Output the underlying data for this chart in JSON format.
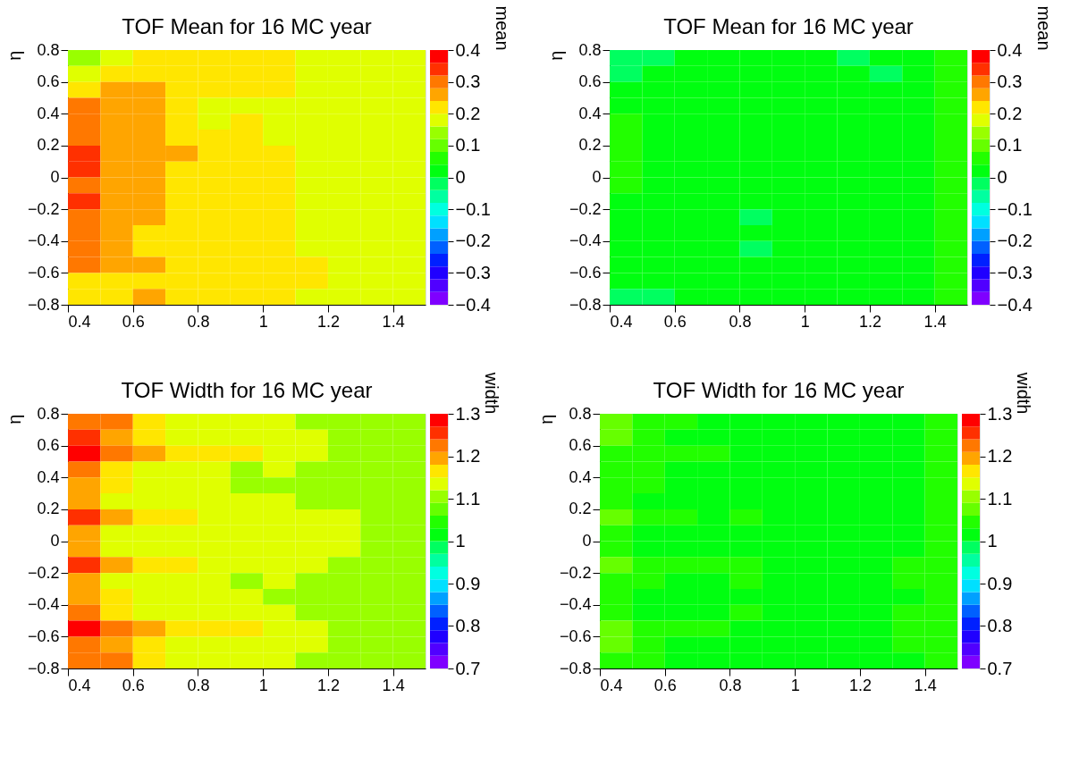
{
  "chart_data": [
    {
      "type": "heatmap",
      "title": "TOF Mean for 16 MC year",
      "ylabel": "η",
      "clabel": "mean",
      "x": [
        0.45,
        0.55,
        0.65,
        0.75,
        0.85,
        0.95,
        1.05,
        1.15,
        1.25,
        1.35,
        1.45
      ],
      "y": [
        0.75,
        0.65,
        0.55,
        0.45,
        0.35,
        0.25,
        0.15,
        0.05,
        -0.05,
        -0.15,
        -0.25,
        -0.35,
        -0.45,
        -0.55,
        -0.65,
        -0.75
      ],
      "xlim": [
        0.4,
        1.5
      ],
      "xticks": [
        0.4,
        0.6,
        0.8,
        1,
        1.2,
        1.4
      ],
      "ylim": [
        -0.8,
        0.8
      ],
      "yticks": [
        -0.8,
        -0.6,
        -0.4,
        -0.2,
        0,
        0.2,
        0.4,
        0.6,
        0.8
      ],
      "clim": [
        -0.4,
        0.4
      ],
      "cticks": [
        -0.4,
        -0.3,
        -0.2,
        -0.1,
        0,
        0.1,
        0.2,
        0.3,
        0.4
      ],
      "cells": [
        [
          0.14,
          0.18,
          0.22,
          0.22,
          0.22,
          0.22,
          0.22,
          0.18,
          0.18,
          0.18,
          0.18
        ],
        [
          0.18,
          0.22,
          0.22,
          0.22,
          0.22,
          0.22,
          0.22,
          0.18,
          0.18,
          0.18,
          0.18
        ],
        [
          0.22,
          0.26,
          0.26,
          0.22,
          0.22,
          0.22,
          0.22,
          0.18,
          0.18,
          0.18,
          0.18
        ],
        [
          0.3,
          0.26,
          0.26,
          0.22,
          0.18,
          0.18,
          0.18,
          0.18,
          0.18,
          0.18,
          0.18
        ],
        [
          0.3,
          0.26,
          0.26,
          0.22,
          0.18,
          0.22,
          0.18,
          0.18,
          0.18,
          0.18,
          0.18
        ],
        [
          0.3,
          0.26,
          0.26,
          0.22,
          0.22,
          0.22,
          0.18,
          0.18,
          0.18,
          0.18,
          0.18
        ],
        [
          0.34,
          0.26,
          0.26,
          0.26,
          0.22,
          0.22,
          0.22,
          0.18,
          0.18,
          0.18,
          0.18
        ],
        [
          0.34,
          0.26,
          0.26,
          0.22,
          0.22,
          0.22,
          0.22,
          0.18,
          0.18,
          0.18,
          0.18
        ],
        [
          0.3,
          0.26,
          0.26,
          0.22,
          0.22,
          0.22,
          0.22,
          0.18,
          0.18,
          0.18,
          0.18
        ],
        [
          0.34,
          0.26,
          0.26,
          0.22,
          0.22,
          0.22,
          0.22,
          0.18,
          0.18,
          0.18,
          0.18
        ],
        [
          0.3,
          0.26,
          0.26,
          0.22,
          0.22,
          0.22,
          0.22,
          0.18,
          0.18,
          0.18,
          0.18
        ],
        [
          0.3,
          0.26,
          0.22,
          0.22,
          0.22,
          0.22,
          0.22,
          0.18,
          0.18,
          0.18,
          0.18
        ],
        [
          0.3,
          0.26,
          0.22,
          0.22,
          0.22,
          0.22,
          0.22,
          0.18,
          0.18,
          0.18,
          0.18
        ],
        [
          0.3,
          0.26,
          0.26,
          0.22,
          0.22,
          0.22,
          0.22,
          0.22,
          0.18,
          0.18,
          0.18
        ],
        [
          0.22,
          0.22,
          0.22,
          0.22,
          0.22,
          0.22,
          0.22,
          0.22,
          0.18,
          0.18,
          0.18
        ],
        [
          0.22,
          0.22,
          0.26,
          0.22,
          0.22,
          0.22,
          0.22,
          0.18,
          0.18,
          0.18,
          0.18
        ]
      ]
    },
    {
      "type": "heatmap",
      "title": "TOF Mean for 16 MC year",
      "ylabel": "η",
      "clabel": "mean",
      "x": [
        0.45,
        0.55,
        0.65,
        0.75,
        0.85,
        0.95,
        1.05,
        1.15,
        1.25,
        1.35,
        1.45
      ],
      "y": [
        0.75,
        0.65,
        0.55,
        0.45,
        0.35,
        0.25,
        0.15,
        0.05,
        -0.05,
        -0.15,
        -0.25,
        -0.35,
        -0.45,
        -0.55,
        -0.65,
        -0.75
      ],
      "xlim": [
        0.4,
        1.5
      ],
      "xticks": [
        0.4,
        0.6,
        0.8,
        1,
        1.2,
        1.4
      ],
      "ylim": [
        -0.8,
        0.8
      ],
      "yticks": [
        -0.8,
        -0.6,
        -0.4,
        -0.2,
        0,
        0.2,
        0.4,
        0.6,
        0.8
      ],
      "clim": [
        -0.4,
        0.4
      ],
      "cticks": [
        -0.4,
        -0.3,
        -0.2,
        -0.1,
        0,
        0.1,
        0.2,
        0.3,
        0.4
      ],
      "cells": [
        [
          -0.02,
          -0.02,
          0.02,
          0.02,
          0.02,
          0.02,
          0.02,
          -0.02,
          0.02,
          0.02,
          0.06
        ],
        [
          -0.02,
          0.02,
          0.02,
          0.02,
          0.02,
          0.02,
          0.02,
          0.02,
          -0.02,
          0.02,
          0.06
        ],
        [
          0.02,
          0.02,
          0.02,
          0.02,
          0.02,
          0.02,
          0.02,
          0.02,
          0.02,
          0.02,
          0.06
        ],
        [
          0.02,
          0.02,
          0.02,
          0.02,
          0.02,
          0.02,
          0.02,
          0.02,
          0.02,
          0.02,
          0.06
        ],
        [
          0.06,
          0.02,
          0.02,
          0.02,
          0.02,
          0.02,
          0.02,
          0.02,
          0.02,
          0.02,
          0.06
        ],
        [
          0.06,
          0.02,
          0.02,
          0.02,
          0.02,
          0.02,
          0.02,
          0.02,
          0.02,
          0.02,
          0.06
        ],
        [
          0.06,
          0.02,
          0.02,
          0.02,
          0.02,
          0.02,
          0.02,
          0.02,
          0.02,
          0.02,
          0.06
        ],
        [
          0.06,
          0.02,
          0.02,
          0.02,
          0.02,
          0.02,
          0.02,
          0.02,
          0.02,
          0.02,
          0.06
        ],
        [
          0.06,
          0.02,
          0.02,
          0.02,
          0.02,
          0.02,
          0.02,
          0.02,
          0.02,
          0.02,
          0.06
        ],
        [
          0.02,
          0.02,
          0.02,
          0.02,
          0.02,
          0.02,
          0.02,
          0.02,
          0.02,
          0.02,
          0.06
        ],
        [
          0.02,
          0.02,
          0.02,
          0.02,
          -0.02,
          0.02,
          0.02,
          0.02,
          0.02,
          0.02,
          0.06
        ],
        [
          0.02,
          0.02,
          0.02,
          0.02,
          0.02,
          0.02,
          0.02,
          0.02,
          0.02,
          0.02,
          0.06
        ],
        [
          0.02,
          0.02,
          0.02,
          0.02,
          -0.02,
          0.02,
          0.02,
          0.02,
          0.02,
          0.02,
          0.06
        ],
        [
          0.02,
          0.02,
          0.02,
          0.02,
          0.02,
          0.02,
          0.02,
          0.02,
          0.02,
          0.02,
          0.06
        ],
        [
          0.02,
          0.02,
          0.02,
          0.02,
          0.02,
          0.02,
          0.02,
          0.02,
          0.02,
          0.02,
          0.06
        ],
        [
          -0.02,
          -0.02,
          0.02,
          0.02,
          0.02,
          0.02,
          0.02,
          0.02,
          0.02,
          0.02,
          0.06
        ]
      ]
    },
    {
      "type": "heatmap",
      "title": "TOF Width for 16 MC year",
      "ylabel": "η",
      "clabel": "width",
      "x": [
        0.45,
        0.55,
        0.65,
        0.75,
        0.85,
        0.95,
        1.05,
        1.15,
        1.25,
        1.35,
        1.45
      ],
      "y": [
        0.75,
        0.65,
        0.55,
        0.45,
        0.35,
        0.25,
        0.15,
        0.05,
        -0.05,
        -0.15,
        -0.25,
        -0.35,
        -0.45,
        -0.55,
        -0.65,
        -0.75
      ],
      "xlim": [
        0.4,
        1.5
      ],
      "xticks": [
        0.4,
        0.6,
        0.8,
        1,
        1.2,
        1.4
      ],
      "ylim": [
        -0.8,
        0.8
      ],
      "yticks": [
        -0.8,
        -0.6,
        -0.4,
        -0.2,
        0,
        0.2,
        0.4,
        0.6,
        0.8
      ],
      "clim": [
        0.7,
        1.3
      ],
      "cticks": [
        0.7,
        0.8,
        0.9,
        1,
        1.1,
        1.2,
        1.3
      ],
      "cells": [
        [
          1.22,
          1.22,
          1.16,
          1.13,
          1.13,
          1.13,
          1.13,
          1.1,
          1.1,
          1.1,
          1.1
        ],
        [
          1.25,
          1.19,
          1.16,
          1.13,
          1.13,
          1.13,
          1.13,
          1.13,
          1.1,
          1.1,
          1.1
        ],
        [
          1.28,
          1.22,
          1.19,
          1.16,
          1.16,
          1.16,
          1.13,
          1.13,
          1.1,
          1.1,
          1.1
        ],
        [
          1.22,
          1.16,
          1.13,
          1.13,
          1.13,
          1.1,
          1.13,
          1.1,
          1.1,
          1.1,
          1.1
        ],
        [
          1.19,
          1.16,
          1.13,
          1.13,
          1.13,
          1.1,
          1.1,
          1.1,
          1.1,
          1.1,
          1.1
        ],
        [
          1.19,
          1.13,
          1.13,
          1.13,
          1.13,
          1.13,
          1.13,
          1.1,
          1.1,
          1.1,
          1.1
        ],
        [
          1.25,
          1.19,
          1.16,
          1.16,
          1.13,
          1.13,
          1.13,
          1.13,
          1.13,
          1.1,
          1.1
        ],
        [
          1.19,
          1.13,
          1.13,
          1.13,
          1.13,
          1.13,
          1.13,
          1.13,
          1.13,
          1.1,
          1.1
        ],
        [
          1.19,
          1.13,
          1.13,
          1.13,
          1.13,
          1.13,
          1.13,
          1.13,
          1.13,
          1.1,
          1.1
        ],
        [
          1.25,
          1.19,
          1.16,
          1.16,
          1.13,
          1.13,
          1.13,
          1.13,
          1.1,
          1.1,
          1.1
        ],
        [
          1.19,
          1.13,
          1.13,
          1.13,
          1.13,
          1.1,
          1.13,
          1.1,
          1.1,
          1.1,
          1.1
        ],
        [
          1.19,
          1.16,
          1.13,
          1.13,
          1.13,
          1.13,
          1.1,
          1.1,
          1.1,
          1.1,
          1.1
        ],
        [
          1.22,
          1.16,
          1.13,
          1.13,
          1.13,
          1.13,
          1.13,
          1.1,
          1.1,
          1.1,
          1.1
        ],
        [
          1.28,
          1.22,
          1.19,
          1.16,
          1.16,
          1.16,
          1.13,
          1.13,
          1.1,
          1.1,
          1.1
        ],
        [
          1.22,
          1.19,
          1.16,
          1.13,
          1.13,
          1.13,
          1.13,
          1.13,
          1.1,
          1.1,
          1.1
        ],
        [
          1.22,
          1.22,
          1.16,
          1.13,
          1.13,
          1.13,
          1.13,
          1.1,
          1.1,
          1.1,
          1.1
        ]
      ]
    },
    {
      "type": "heatmap",
      "title": "TOF Width for 16 MC year",
      "ylabel": "η",
      "clabel": "width",
      "x": [
        0.45,
        0.55,
        0.65,
        0.75,
        0.85,
        0.95,
        1.05,
        1.15,
        1.25,
        1.35,
        1.45
      ],
      "y": [
        0.75,
        0.65,
        0.55,
        0.45,
        0.35,
        0.25,
        0.15,
        0.05,
        -0.05,
        -0.15,
        -0.25,
        -0.35,
        -0.45,
        -0.55,
        -0.65,
        -0.75
      ],
      "xlim": [
        0.4,
        1.5
      ],
      "xticks": [
        0.4,
        0.6,
        0.8,
        1,
        1.2,
        1.4
      ],
      "ylim": [
        -0.8,
        0.8
      ],
      "yticks": [
        -0.8,
        -0.6,
        -0.4,
        -0.2,
        0,
        0.2,
        0.4,
        0.6,
        0.8
      ],
      "clim": [
        0.7,
        1.3
      ],
      "cticks": [
        0.7,
        0.8,
        0.9,
        1,
        1.1,
        1.2,
        1.3
      ],
      "cells": [
        [
          1.07,
          1.04,
          1.04,
          1.01,
          1.01,
          1.01,
          1.01,
          1.01,
          1.01,
          1.01,
          1.04
        ],
        [
          1.07,
          1.04,
          1.01,
          1.01,
          1.01,
          1.01,
          1.01,
          1.01,
          1.01,
          1.01,
          1.04
        ],
        [
          1.04,
          1.04,
          1.04,
          1.04,
          1.01,
          1.01,
          1.01,
          1.01,
          1.01,
          1.01,
          1.04
        ],
        [
          1.04,
          1.04,
          1.01,
          1.01,
          1.01,
          1.01,
          1.01,
          1.01,
          1.01,
          1.01,
          1.04
        ],
        [
          1.04,
          1.04,
          1.01,
          1.01,
          1.01,
          1.01,
          1.01,
          1.01,
          1.01,
          1.01,
          1.04
        ],
        [
          1.04,
          1.01,
          1.01,
          1.01,
          1.01,
          1.01,
          1.01,
          1.01,
          1.01,
          1.01,
          1.04
        ],
        [
          1.07,
          1.04,
          1.04,
          1.01,
          1.04,
          1.01,
          1.01,
          1.01,
          1.01,
          1.01,
          1.04
        ],
        [
          1.04,
          1.01,
          1.01,
          1.01,
          1.01,
          1.01,
          1.01,
          1.01,
          1.01,
          1.01,
          1.04
        ],
        [
          1.04,
          1.01,
          1.01,
          1.01,
          1.01,
          1.01,
          1.01,
          1.01,
          1.01,
          1.01,
          1.04
        ],
        [
          1.07,
          1.04,
          1.04,
          1.04,
          1.04,
          1.01,
          1.01,
          1.01,
          1.01,
          1.04,
          1.04
        ],
        [
          1.04,
          1.04,
          1.01,
          1.01,
          1.04,
          1.01,
          1.01,
          1.01,
          1.01,
          1.04,
          1.04
        ],
        [
          1.04,
          1.01,
          1.01,
          1.01,
          1.01,
          1.01,
          1.01,
          1.01,
          1.01,
          1.01,
          1.04
        ],
        [
          1.04,
          1.01,
          1.01,
          1.01,
          1.04,
          1.01,
          1.01,
          1.01,
          1.01,
          1.04,
          1.04
        ],
        [
          1.07,
          1.04,
          1.04,
          1.04,
          1.01,
          1.01,
          1.01,
          1.01,
          1.01,
          1.04,
          1.04
        ],
        [
          1.07,
          1.04,
          1.01,
          1.01,
          1.01,
          1.01,
          1.01,
          1.01,
          1.01,
          1.04,
          1.04
        ],
        [
          1.04,
          1.04,
          1.01,
          1.01,
          1.01,
          1.01,
          1.01,
          1.01,
          1.01,
          1.01,
          1.04
        ]
      ]
    }
  ]
}
